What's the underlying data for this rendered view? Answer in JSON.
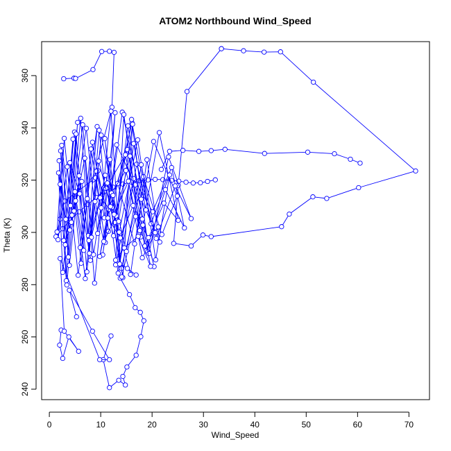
{
  "chart_data": {
    "type": "line",
    "title": "ATOM2 Northbound Wind_Speed",
    "xlabel": "Wind_Speed",
    "ylabel": "Theta (K)",
    "xlim": [
      -1.5,
      74
    ],
    "ylim": [
      236,
      373
    ],
    "x_ticks": [
      0,
      10,
      20,
      30,
      40,
      50,
      60,
      70
    ],
    "y_ticks": [
      240,
      260,
      280,
      300,
      320,
      340,
      360
    ],
    "grid": false,
    "legend": "none",
    "colors": {
      "series": "#0000ff",
      "axis": "#000000"
    },
    "marker": "open-circle",
    "series": [
      {
        "x": [
          33.5,
          37.8,
          41.8,
          45.0,
          51.4,
          71.3,
          60.2,
          54.0,
          51.3,
          46.7,
          45.2,
          31.5,
          29.9,
          27.6,
          24.2,
          25.1,
          26.8,
          33.5
        ],
        "y": [
          370.3,
          369.5,
          369.0,
          369.1,
          357.5,
          323.5,
          317.1,
          313.0,
          313.6,
          307.0,
          302.2,
          298.4,
          299.0,
          294.8,
          295.8,
          318.0,
          353.9,
          370.3
        ]
      },
      {
        "x": [
          60.5,
          58.6,
          55.5,
          50.3,
          41.9,
          34.2,
          31.5,
          29.1,
          26.0,
          23.4,
          21.8
        ],
        "y": [
          326.5,
          328.0,
          330.1,
          330.7,
          330.2,
          331.8,
          331.3,
          331.0,
          331.4,
          331.0,
          324.1
        ]
      },
      {
        "x": [
          13.8,
          15.6,
          16.7,
          17.7,
          18.4,
          17.8,
          16.9,
          15.1,
          14.3,
          14.8,
          13.5,
          11.7,
          10.5,
          12.0
        ],
        "y": [
          282.5,
          276.2,
          271.2,
          269.4,
          266.2,
          260.1,
          253.0,
          248.5,
          244.9,
          241.6,
          243.4,
          240.6,
          251.3,
          260.4
        ]
      },
      {
        "x": [
          2.3,
          2.0,
          2.6,
          3.8,
          5.7,
          2.9,
          2.1,
          9.8,
          11.7,
          8.4,
          3.9,
          5.3
        ],
        "y": [
          262.6,
          256.9,
          251.8,
          260.0,
          254.5,
          262.2,
          290.0,
          251.3,
          251.3,
          262.2,
          277.9,
          267.7
        ]
      },
      {
        "x": [
          2.8,
          4.8,
          5.1,
          8.5,
          10.2,
          11.7,
          12.6,
          12.2,
          8.5,
          3.0,
          2.1,
          1.3,
          2.6,
          4.1,
          5.8,
          7.5,
          9.1,
          10.7,
          12.4,
          14.3,
          16.0,
          17.5,
          19.2,
          20.6,
          22.1,
          23.8,
          25.2,
          26.6,
          28.0,
          29.4,
          30.8,
          32.3
        ],
        "y": [
          358.8,
          359.0,
          358.9,
          362.3,
          369.2,
          369.3,
          368.9,
          347.9,
          320.1,
          312.0,
          305.1,
          298.4,
          301.4,
          304.8,
          307.9,
          310.7,
          313.4,
          315.5,
          317.3,
          318.5,
          319.2,
          319.8,
          320.1,
          320.3,
          320.2,
          319.9,
          319.6,
          319.2,
          318.9,
          319.0,
          319.5,
          320.1
        ]
      },
      {
        "x": [
          1.5,
          2.1,
          3.3,
          4.6,
          2.8,
          1.9,
          3.7,
          5.5,
          4.1,
          2.6,
          1.8,
          3.2,
          4.9,
          6.7,
          5.0,
          3.4,
          2.2,
          4.0,
          6.1,
          8.0,
          6.3,
          4.4,
          2.9,
          1.7,
          3.5,
          5.6,
          7.4,
          9.3,
          7.6,
          5.8,
          3.9,
          2.4,
          4.3,
          6.5,
          8.6,
          10.6,
          8.8,
          6.9,
          4.8,
          3.1,
          5.2,
          7.3,
          9.5,
          11.5,
          9.7,
          7.8,
          5.9,
          4.0,
          6.2,
          8.4,
          10.7,
          12.8,
          10.9,
          9.0,
          7.0,
          5.1,
          7.2,
          9.4,
          11.8,
          13.9,
          12.0,
          10.1,
          8.1,
          6.0
        ],
        "y": [
          300.2,
          318.4,
          281.5,
          335.7,
          296.9,
          327.4,
          290.6,
          342.1,
          310.3,
          284.7,
          322.8,
          305.0,
          338.4,
          293.1,
          315.6,
          279.9,
          331.2,
          300.9,
          343.7,
          289.3,
          319.5,
          306.6,
          336.0,
          297.2,
          325.1,
          283.6,
          312.9,
          340.5,
          298.8,
          321.7,
          287.4,
          333.3,
          303.9,
          341.2,
          291.5,
          317.0,
          280.6,
          328.4,
          308.2,
          295.3,
          337.7,
          284.9,
          323.6,
          300.4,
          339.1,
          292.0,
          314.8,
          326.7,
          288.2,
          334.5,
          305.6,
          345.8,
          296.1,
          320.9,
          282.3,
          312.1,
          339.8,
          299.6,
          327.9,
          286.7,
          346.4,
          309.4,
          331.9,
          294.2
        ]
      },
      {
        "x": [
          9.2,
          12.5,
          15.3,
          18.1,
          20.4,
          16.7,
          13.1,
          10.4,
          14.2,
          17.9,
          21.5,
          19.0,
          15.8,
          12.2,
          16.1,
          19.8,
          23.4,
          20.7,
          17.2,
          13.6,
          11.0,
          14.8,
          18.6,
          22.3,
          25.1,
          21.4,
          17.8,
          14.5,
          12.9,
          16.4,
          20.1,
          23.8,
          26.3,
          22.6,
          18.9,
          15.2,
          11.6,
          13.4,
          17.0,
          20.8,
          24.5,
          27.6,
          23.2,
          19.4,
          16.0,
          12.7,
          10.8,
          14.0,
          18.3,
          21.9,
          24.9,
          20.3,
          16.6,
          13.3
        ],
        "y": [
          323.4,
          298.7,
          340.8,
          305.1,
          286.9,
          318.2,
          333.5,
          291.4,
          346.0,
          312.7,
          296.3,
          327.8,
          283.9,
          309.6,
          341.9,
          303.3,
          322.0,
          289.5,
          335.4,
          300.1,
          316.9,
          329.7,
          294.8,
          311.2,
          304.6,
          338.2,
          298.3,
          345.1,
          287.6,
          320.6,
          307.9,
          324.8,
          301.7,
          316.4,
          293.0,
          331.7,
          308.8,
          284.4,
          326.1,
          297.7,
          317.8,
          305.3,
          328.9,
          291.9,
          343.2,
          303.8,
          335.9,
          286.2,
          321.3,
          299.2,
          313.9,
          334.8,
          295.6,
          318.7
        ]
      },
      {
        "x": [
          16.9,
          15.2,
          12.9,
          14.6,
          17.3,
          19.7,
          18.2,
          16.3,
          13.8,
          11.4,
          9.8,
          12.1,
          14.9,
          17.6,
          15.7,
          13.0,
          10.6,
          8.9,
          11.3,
          13.7,
          16.4,
          18.8,
          20.6,
          17.9,
          15.0,
          12.4,
          10.1,
          8.2,
          10.9,
          13.5,
          16.2,
          14.3,
          11.9,
          9.6,
          7.7,
          9.9,
          12.6,
          15.4,
          18.1,
          21.2,
          19.3,
          16.8,
          14.1
        ],
        "y": [
          283.7,
          286.2,
          289.4,
          294.1,
          298.5,
          287.0,
          302.8,
          310.3,
          297.9,
          305.5,
          290.8,
          315.1,
          323.7,
          300.7,
          329.2,
          306.3,
          296.5,
          311.8,
          318.9,
          287.9,
          334.0,
          308.6,
          299.9,
          325.9,
          292.7,
          314.2,
          337.2,
          298.1,
          321.9,
          304.2,
          341.4,
          282.7,
          309.9,
          327.3,
          296.9,
          313.3,
          306.9,
          319.6,
          290.3,
          302.1,
          298.0,
          306.1,
          283.0
        ]
      }
    ]
  }
}
